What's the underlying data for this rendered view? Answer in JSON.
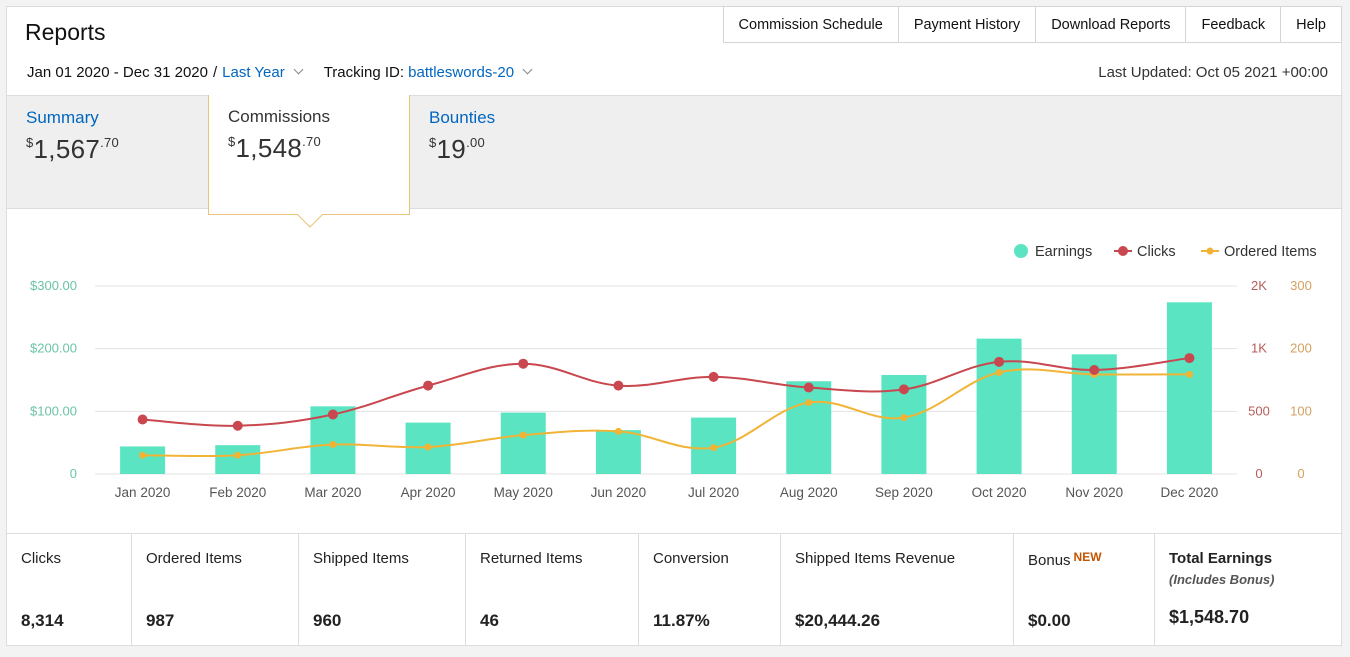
{
  "header": {
    "title": "Reports",
    "nav": [
      "Commission Schedule",
      "Payment History",
      "Download Reports",
      "Feedback",
      "Help"
    ],
    "date_range": "Jan 01 2020 - Dec 31 2020",
    "period_separator": "/",
    "period": "Last Year",
    "tracking_label": "Tracking ID:",
    "tracking_id": "battleswords-20",
    "last_updated": "Last Updated: Oct 05 2021 +00:00"
  },
  "tabs": [
    {
      "label": "Summary",
      "currency": "$",
      "whole": "1,567",
      "cents": ".70"
    },
    {
      "label": "Commissions",
      "currency": "$",
      "whole": "1,548",
      "cents": ".70"
    },
    {
      "label": "Bounties",
      "currency": "$",
      "whole": "19",
      "cents": ".00"
    }
  ],
  "chart_data": {
    "type": "bar",
    "categories": [
      "Jan 2020",
      "Feb 2020",
      "Mar 2020",
      "Apr 2020",
      "May 2020",
      "Jun 2020",
      "Jul 2020",
      "Aug 2020",
      "Sep 2020",
      "Oct 2020",
      "Nov 2020",
      "Dec 2020"
    ],
    "legend": [
      "Earnings",
      "Clicks",
      "Ordered Items"
    ],
    "legend_position": "top-right",
    "series": [
      {
        "name": "Earnings",
        "type": "bar",
        "axis": "left",
        "color": "#5ae4c1",
        "values": [
          44,
          46,
          108,
          82,
          98,
          70,
          90,
          148,
          158,
          216,
          191,
          274
        ]
      },
      {
        "name": "Clicks",
        "type": "line",
        "axis": "right-inner",
        "color": "#c9474f",
        "values": [
          435,
          385,
          475,
          705,
          880,
          705,
          775,
          690,
          675,
          895,
          830,
          925
        ]
      },
      {
        "name": "Ordered Items",
        "type": "line",
        "axis": "right-outer",
        "color": "#f1b437",
        "values": [
          30,
          30,
          47,
          43,
          62,
          68,
          42,
          114,
          90,
          162,
          159,
          159
        ]
      }
    ],
    "left_axis": {
      "ticks": [
        "0",
        "$100.00",
        "$200.00",
        "$300.00"
      ],
      "range": [
        0,
        300
      ],
      "color": "#6bc4a6"
    },
    "right_inner_axis": {
      "ticks": [
        "0",
        "500",
        "1K",
        "2K"
      ],
      "range": [
        0,
        1500
      ],
      "color": "#b85c5c"
    },
    "right_outer_axis": {
      "ticks": [
        "0",
        "100",
        "200",
        "300"
      ],
      "range": [
        0,
        300
      ],
      "color": "#d4a060"
    },
    "grid": true
  },
  "stats": [
    {
      "label": "Clicks",
      "value": "8,314"
    },
    {
      "label": "Ordered Items",
      "value": "987"
    },
    {
      "label": "Shipped Items",
      "value": "960"
    },
    {
      "label": "Returned Items",
      "value": "46"
    },
    {
      "label": "Conversion",
      "value": "11.87%"
    },
    {
      "label": "Shipped Items Revenue",
      "value": "$20,444.26"
    },
    {
      "label": "Bonus",
      "badge": "NEW",
      "value": "$0.00"
    },
    {
      "label": "Total Earnings",
      "sub": "(Includes Bonus)",
      "value": "$1,548.70"
    }
  ]
}
